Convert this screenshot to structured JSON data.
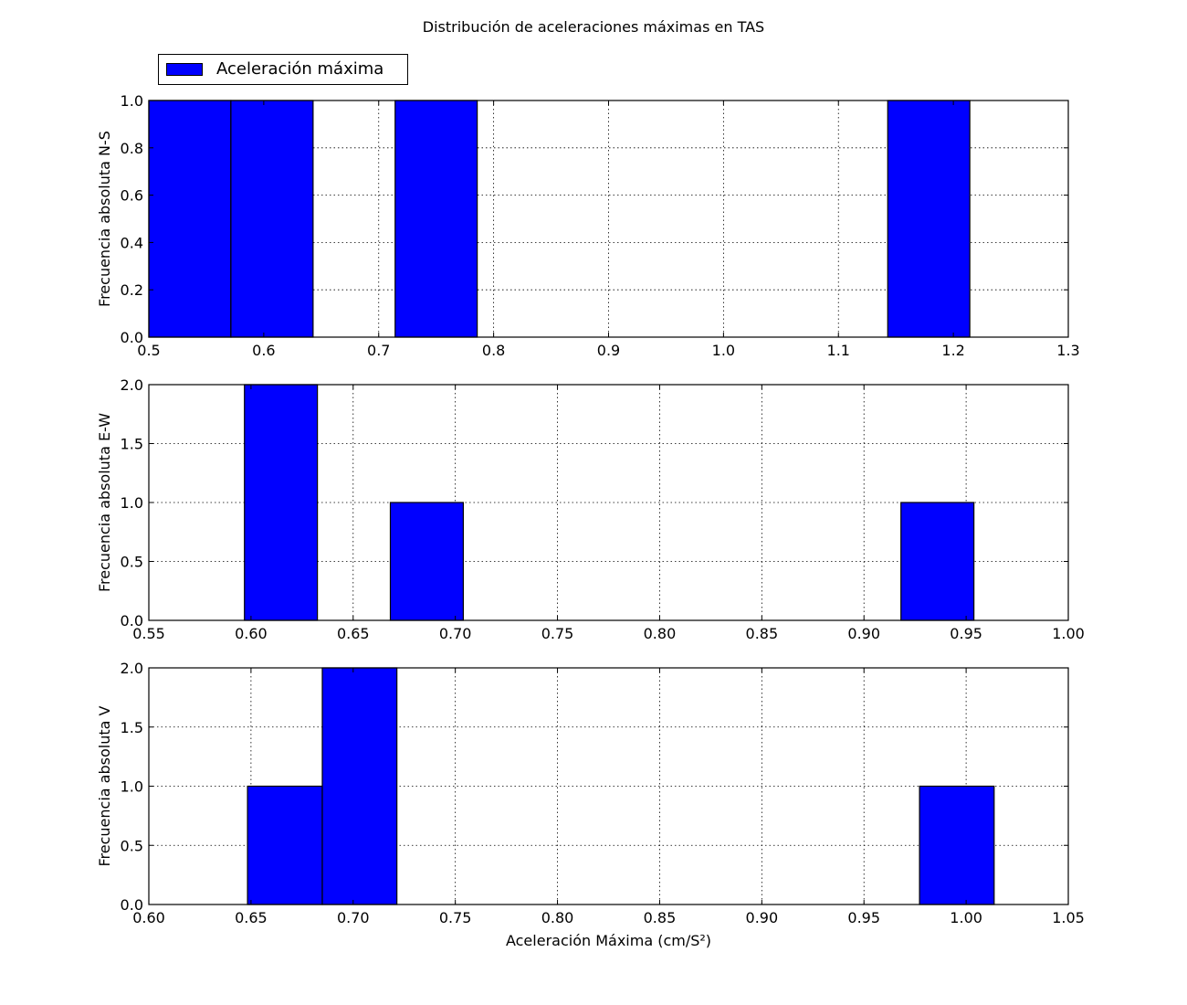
{
  "figure": {
    "title": "Distribución de aceleraciones máximas en TAS",
    "legend": {
      "label": "Aceleración máxima",
      "color": "#0000ff"
    }
  },
  "chart_data": [
    {
      "type": "bar",
      "panel": "top",
      "ylabel": "Frecuencia absoluta N-S",
      "xlabel": "",
      "xlim": [
        0.5,
        1.3
      ],
      "ylim": [
        0,
        1.0
      ],
      "xticks": [
        "0.5",
        "0.6",
        "0.7",
        "0.8",
        "0.9",
        "1.0",
        "1.1",
        "1.2",
        "1.3"
      ],
      "yticks": [
        "0.0",
        "0.2",
        "0.4",
        "0.6",
        "0.8",
        "1.0"
      ],
      "grid": true,
      "bar_color": "#0000ff",
      "bins": [
        {
          "x0": 0.5,
          "x1": 0.5714,
          "value": 1
        },
        {
          "x0": 0.5714,
          "x1": 0.6429,
          "value": 1
        },
        {
          "x0": 0.7143,
          "x1": 0.7857,
          "value": 1
        },
        {
          "x0": 1.1429,
          "x1": 1.2143,
          "value": 1
        }
      ]
    },
    {
      "type": "bar",
      "panel": "middle",
      "ylabel": "Frecuencia absoluta E-W",
      "xlabel": "",
      "xlim": [
        0.55,
        1.0
      ],
      "ylim": [
        0,
        2.0
      ],
      "xticks": [
        "0.55",
        "0.60",
        "0.65",
        "0.70",
        "0.75",
        "0.80",
        "0.85",
        "0.90",
        "0.95",
        "1.00"
      ],
      "yticks": [
        "0.0",
        "0.5",
        "1.0",
        "1.5",
        "2.0"
      ],
      "grid": true,
      "bar_color": "#0000ff",
      "bins": [
        {
          "x0": 0.5968,
          "x1": 0.6325,
          "value": 2
        },
        {
          "x0": 0.6682,
          "x1": 0.7039,
          "value": 1
        },
        {
          "x0": 0.9181,
          "x1": 0.9538,
          "value": 1
        }
      ]
    },
    {
      "type": "bar",
      "panel": "bottom",
      "ylabel": "Frecuencia absoluta V",
      "xlabel": "Aceleración Máxima (cm/S²)",
      "xlim": [
        0.6,
        1.05
      ],
      "ylim": [
        0,
        2.0
      ],
      "xticks": [
        "0.60",
        "0.65",
        "0.70",
        "0.75",
        "0.80",
        "0.85",
        "0.90",
        "0.95",
        "1.00",
        "1.05"
      ],
      "yticks": [
        "0.0",
        "0.5",
        "1.0",
        "1.5",
        "2.0"
      ],
      "grid": true,
      "bar_color": "#0000ff",
      "bins": [
        {
          "x0": 0.6483,
          "x1": 0.6849,
          "value": 1
        },
        {
          "x0": 0.6849,
          "x1": 0.7214,
          "value": 2
        },
        {
          "x0": 0.9772,
          "x1": 1.0137,
          "value": 1
        }
      ]
    }
  ]
}
